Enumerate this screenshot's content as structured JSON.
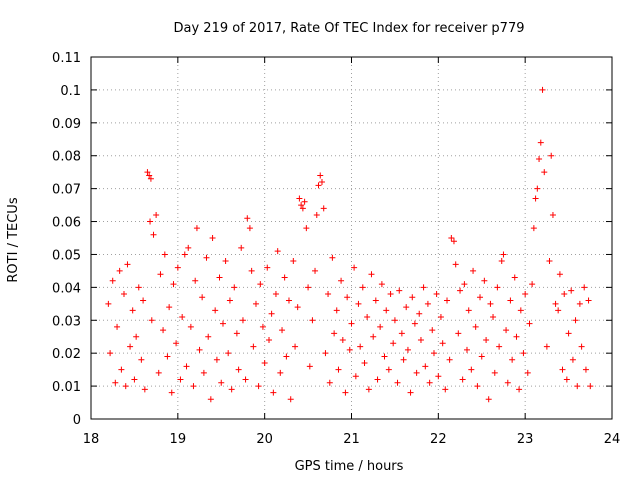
{
  "chart_data": {
    "type": "scatter",
    "title": "Day 219 of 2017, Rate Of TEC Index for receiver p779",
    "xlabel": "GPS time / hours",
    "ylabel": "ROTI / TECUs",
    "xlim": [
      18,
      24
    ],
    "ylim": [
      0,
      0.11
    ],
    "xticks": [
      18,
      19,
      20,
      21,
      22,
      23,
      24
    ],
    "xtick_labels": [
      "18",
      "19",
      "20",
      "21",
      "22",
      "23",
      "24"
    ],
    "yticks": [
      0,
      0.01,
      0.02,
      0.03,
      0.04,
      0.05,
      0.06,
      0.07,
      0.08,
      0.09,
      0.1,
      0.11
    ],
    "ytick_labels": [
      "0",
      "0.01",
      "0.02",
      "0.03",
      "0.04",
      "0.05",
      "0.06",
      "0.07",
      "0.08",
      "0.09",
      "0.1",
      "0.11"
    ],
    "grid": true,
    "marker": "+",
    "color": "#ff0000",
    "series": [
      {
        "name": "ROTI",
        "x": [
          18.2,
          18.22,
          18.25,
          18.28,
          18.3,
          18.33,
          18.35,
          18.38,
          18.4,
          18.42,
          18.45,
          18.48,
          18.5,
          18.52,
          18.55,
          18.58,
          18.6,
          18.62,
          18.65,
          18.67,
          18.68,
          18.69,
          18.7,
          18.72,
          18.75,
          18.78,
          18.8,
          18.83,
          18.85,
          18.88,
          18.9,
          18.93,
          18.95,
          18.98,
          19.0,
          19.03,
          19.05,
          19.08,
          19.1,
          19.12,
          19.15,
          19.18,
          19.2,
          19.22,
          19.25,
          19.28,
          19.3,
          19.33,
          19.35,
          19.38,
          19.4,
          19.43,
          19.45,
          19.48,
          19.5,
          19.52,
          19.55,
          19.58,
          19.6,
          19.62,
          19.65,
          19.68,
          19.7,
          19.73,
          19.75,
          19.78,
          19.8,
          19.83,
          19.85,
          19.87,
          19.9,
          19.93,
          19.95,
          19.98,
          20.0,
          20.03,
          20.05,
          20.08,
          20.1,
          20.13,
          20.15,
          20.18,
          20.2,
          20.23,
          20.25,
          20.28,
          20.3,
          20.33,
          20.35,
          20.38,
          20.4,
          20.42,
          20.44,
          20.46,
          20.48,
          20.5,
          20.52,
          20.55,
          20.58,
          20.6,
          20.62,
          20.64,
          20.66,
          20.68,
          20.7,
          20.73,
          20.75,
          20.78,
          20.8,
          20.83,
          20.85,
          20.88,
          20.9,
          20.93,
          20.95,
          20.98,
          21.0,
          21.03,
          21.05,
          21.08,
          21.1,
          21.13,
          21.15,
          21.18,
          21.2,
          21.23,
          21.25,
          21.28,
          21.3,
          21.33,
          21.35,
          21.38,
          21.4,
          21.43,
          21.45,
          21.48,
          21.5,
          21.53,
          21.55,
          21.58,
          21.6,
          21.63,
          21.65,
          21.68,
          21.7,
          21.73,
          21.75,
          21.78,
          21.8,
          21.83,
          21.85,
          21.88,
          21.9,
          21.93,
          21.95,
          21.98,
          22.0,
          22.03,
          22.05,
          22.08,
          22.1,
          22.13,
          22.15,
          22.18,
          22.2,
          22.23,
          22.25,
          22.28,
          22.3,
          22.33,
          22.35,
          22.38,
          22.4,
          22.43,
          22.45,
          22.48,
          22.5,
          22.53,
          22.55,
          22.58,
          22.6,
          22.63,
          22.65,
          22.68,
          22.7,
          22.73,
          22.75,
          22.78,
          22.8,
          22.83,
          22.85,
          22.88,
          22.9,
          22.93,
          22.95,
          22.98,
          23.0,
          23.03,
          23.05,
          23.08,
          23.1,
          23.12,
          23.14,
          23.16,
          23.18,
          23.2,
          23.22,
          23.25,
          23.28,
          23.3,
          23.32,
          23.35,
          23.38,
          23.4,
          23.43,
          23.45,
          23.48,
          23.5,
          23.53,
          23.55,
          23.58,
          23.6,
          23.63,
          23.65,
          23.68,
          23.7,
          23.73,
          23.75
        ],
        "y": [
          0.035,
          0.02,
          0.042,
          0.011,
          0.028,
          0.045,
          0.015,
          0.038,
          0.01,
          0.047,
          0.022,
          0.033,
          0.012,
          0.025,
          0.04,
          0.018,
          0.036,
          0.009,
          0.075,
          0.074,
          0.06,
          0.073,
          0.03,
          0.056,
          0.062,
          0.014,
          0.044,
          0.027,
          0.05,
          0.019,
          0.034,
          0.008,
          0.041,
          0.023,
          0.046,
          0.012,
          0.031,
          0.05,
          0.016,
          0.052,
          0.028,
          0.01,
          0.042,
          0.058,
          0.021,
          0.037,
          0.014,
          0.049,
          0.025,
          0.006,
          0.055,
          0.033,
          0.018,
          0.043,
          0.011,
          0.029,
          0.048,
          0.02,
          0.036,
          0.009,
          0.04,
          0.026,
          0.015,
          0.052,
          0.03,
          0.012,
          0.061,
          0.058,
          0.045,
          0.022,
          0.035,
          0.01,
          0.041,
          0.028,
          0.017,
          0.046,
          0.024,
          0.032,
          0.008,
          0.038,
          0.051,
          0.014,
          0.027,
          0.043,
          0.019,
          0.036,
          0.006,
          0.048,
          0.022,
          0.034,
          0.067,
          0.065,
          0.064,
          0.066,
          0.058,
          0.04,
          0.016,
          0.03,
          0.045,
          0.062,
          0.071,
          0.074,
          0.072,
          0.064,
          0.02,
          0.038,
          0.011,
          0.049,
          0.026,
          0.033,
          0.015,
          0.042,
          0.024,
          0.008,
          0.037,
          0.021,
          0.029,
          0.046,
          0.013,
          0.035,
          0.022,
          0.04,
          0.017,
          0.031,
          0.009,
          0.044,
          0.025,
          0.036,
          0.012,
          0.028,
          0.041,
          0.019,
          0.033,
          0.015,
          0.038,
          0.023,
          0.03,
          0.011,
          0.039,
          0.026,
          0.018,
          0.034,
          0.021,
          0.008,
          0.037,
          0.029,
          0.014,
          0.032,
          0.024,
          0.04,
          0.016,
          0.035,
          0.011,
          0.027,
          0.02,
          0.038,
          0.013,
          0.031,
          0.023,
          0.009,
          0.036,
          0.018,
          0.055,
          0.054,
          0.047,
          0.026,
          0.039,
          0.012,
          0.041,
          0.021,
          0.033,
          0.015,
          0.045,
          0.028,
          0.01,
          0.037,
          0.019,
          0.042,
          0.024,
          0.006,
          0.035,
          0.031,
          0.014,
          0.04,
          0.022,
          0.048,
          0.05,
          0.027,
          0.011,
          0.036,
          0.018,
          0.043,
          0.025,
          0.009,
          0.033,
          0.02,
          0.038,
          0.014,
          0.029,
          0.041,
          0.058,
          0.067,
          0.07,
          0.079,
          0.084,
          0.1,
          0.075,
          0.022,
          0.048,
          0.08,
          0.062,
          0.035,
          0.033,
          0.044,
          0.015,
          0.038,
          0.012,
          0.026,
          0.039,
          0.018,
          0.03,
          0.01,
          0.035,
          0.022,
          0.04,
          0.015,
          0.036,
          0.01
        ]
      }
    ]
  }
}
